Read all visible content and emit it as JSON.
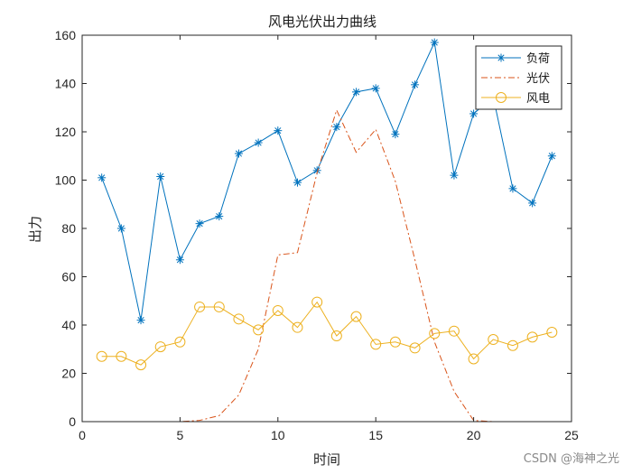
{
  "chart_data": {
    "type": "line",
    "title": "风电光伏出力曲线",
    "xlabel": "时间",
    "ylabel": "出力",
    "xlim": [
      0,
      25
    ],
    "ylim": [
      0,
      160
    ],
    "xticks": [
      0,
      5,
      10,
      15,
      20,
      25
    ],
    "yticks": [
      0,
      20,
      40,
      60,
      80,
      100,
      120,
      140,
      160
    ],
    "grid": false,
    "legend_position": "top-right",
    "x": [
      1,
      2,
      3,
      4,
      5,
      6,
      7,
      8,
      9,
      10,
      11,
      12,
      13,
      14,
      15,
      16,
      17,
      18,
      19,
      20,
      21,
      22,
      23,
      24
    ],
    "series": [
      {
        "name": "负荷",
        "color": "#0072BD",
        "marker": "asterisk",
        "line": "solid",
        "values": [
          101,
          80,
          42,
          101.5,
          67,
          82,
          85,
          111,
          115.5,
          120.5,
          99,
          104,
          122,
          136.5,
          138,
          119,
          139.5,
          157,
          102,
          127.5,
          134.5,
          96.5,
          90.5,
          110
        ]
      },
      {
        "name": "光伏",
        "color": "#D95319",
        "marker": "none",
        "line": "dashdot",
        "values": [
          0,
          0,
          0,
          0,
          0,
          0.5,
          2.5,
          11,
          30,
          69,
          70,
          103,
          129,
          111.5,
          121,
          99.5,
          67,
          33,
          12.5,
          0.5,
          0,
          0,
          0,
          0
        ]
      },
      {
        "name": "风电",
        "color": "#EDB120",
        "marker": "circle",
        "line": "solid",
        "values": [
          27,
          27,
          23.5,
          31,
          33,
          47.5,
          47.5,
          42.5,
          38,
          46,
          39,
          49.5,
          35.5,
          43.5,
          32,
          33,
          30.5,
          36.5,
          37.5,
          26,
          34,
          31.5,
          35,
          37
        ]
      }
    ]
  },
  "watermark": "CSDN @海神之光"
}
